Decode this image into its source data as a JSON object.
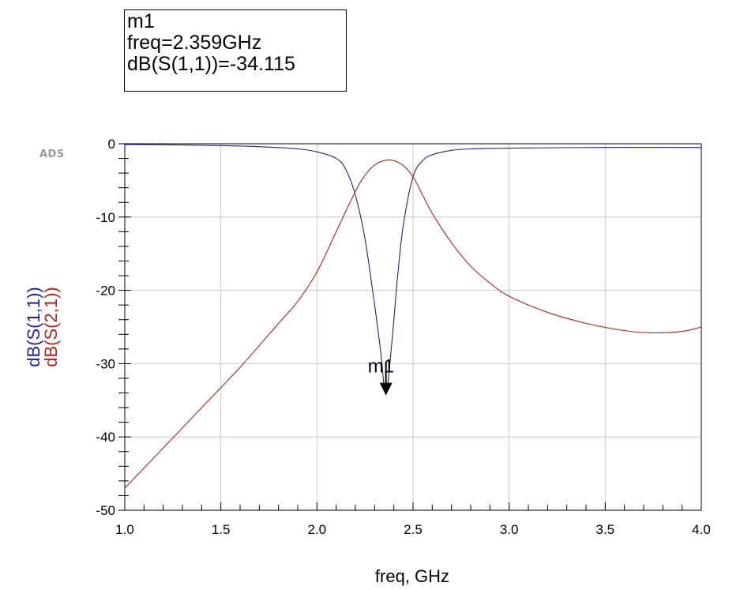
{
  "marker_readout": {
    "name": "m1",
    "freq_line": "freq=2.359GHz",
    "value_line": "dB(S(1,1))=-34.115"
  },
  "logo": "ADS",
  "chart_data": {
    "type": "line",
    "xlabel": "freq, GHz",
    "xlim": [
      1.0,
      4.0
    ],
    "ylim": [
      -50,
      0
    ],
    "x_ticks": [
      1.0,
      1.5,
      2.0,
      2.5,
      3.0,
      3.5,
      4.0
    ],
    "x_tick_labels": [
      "1.0",
      "1.5",
      "2.0",
      "2.5",
      "3.0",
      "3.5",
      "4.0"
    ],
    "y_ticks": [
      0,
      -10,
      -20,
      -30,
      -40,
      -50
    ],
    "y_tick_labels": [
      "0",
      "-10",
      "-20",
      "-30",
      "-40",
      "-50"
    ],
    "grid": true,
    "series": [
      {
        "name": "dB(S(1,1))",
        "color": "#1f1fa0",
        "x": [
          1.0,
          1.25,
          1.5,
          1.7,
          1.9,
          2.0,
          2.1,
          2.15,
          2.2,
          2.25,
          2.3,
          2.33,
          2.359,
          2.39,
          2.42,
          2.45,
          2.5,
          2.55,
          2.6,
          2.7,
          2.8,
          3.0,
          3.5,
          4.0
        ],
        "y": [
          -0.1,
          -0.15,
          -0.25,
          -0.4,
          -0.7,
          -1.1,
          -2.0,
          -3.5,
          -7.0,
          -13.0,
          -22.0,
          -28.0,
          -34.115,
          -27.0,
          -18.0,
          -11.0,
          -4.5,
          -2.3,
          -1.5,
          -0.9,
          -0.7,
          -0.6,
          -0.5,
          -0.5
        ]
      },
      {
        "name": "dB(S(2,1))",
        "color": "#b82020",
        "x": [
          1.0,
          1.2,
          1.4,
          1.6,
          1.8,
          1.9,
          2.0,
          2.1,
          2.2,
          2.25,
          2.3,
          2.35,
          2.4,
          2.45,
          2.5,
          2.55,
          2.6,
          2.7,
          2.8,
          2.9,
          3.0,
          3.2,
          3.4,
          3.6,
          3.75,
          3.9,
          4.0
        ],
        "y": [
          -47.0,
          -41.5,
          -36.0,
          -30.5,
          -24.5,
          -21.5,
          -17.5,
          -12.0,
          -6.5,
          -4.3,
          -2.9,
          -2.3,
          -2.3,
          -3.0,
          -4.5,
          -7.0,
          -9.5,
          -13.5,
          -16.7,
          -19.0,
          -20.8,
          -23.0,
          -24.5,
          -25.5,
          -25.8,
          -25.6,
          -25.0
        ]
      }
    ],
    "marker": {
      "name": "m1",
      "x": 2.359,
      "y": -34.115,
      "series": "dB(S(1,1))"
    }
  }
}
